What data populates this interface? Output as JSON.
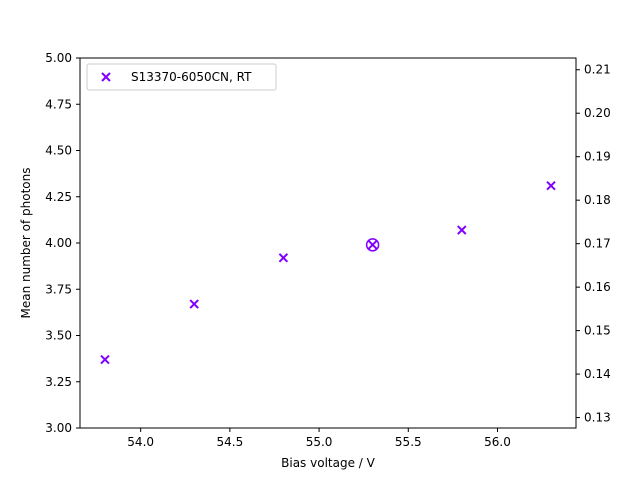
{
  "chart_data": {
    "type": "scatter",
    "xlabel": "Bias voltage / V",
    "ylabel": "Mean number of photons",
    "xlim": [
      53.66,
      56.44
    ],
    "ylim": [
      3.0,
      5.0
    ],
    "y2lim": [
      0.1276,
      0.2127
    ],
    "xticks": [
      "54.0",
      "54.5",
      "55.0",
      "55.5",
      "56.0"
    ],
    "xtick_values": [
      54.0,
      54.5,
      55.0,
      55.5,
      56.0
    ],
    "yticks": [
      "3.00",
      "3.25",
      "3.50",
      "3.75",
      "4.00",
      "4.25",
      "4.50",
      "4.75",
      "5.00"
    ],
    "ytick_values": [
      3.0,
      3.25,
      3.5,
      3.75,
      4.0,
      4.25,
      4.5,
      4.75,
      5.0
    ],
    "y2ticks": [
      "0.13",
      "0.14",
      "0.15",
      "0.16",
      "0.17",
      "0.18",
      "0.19",
      "0.20",
      "0.21"
    ],
    "y2tick_values": [
      0.13,
      0.14,
      0.15,
      0.16,
      0.17,
      0.18,
      0.19,
      0.2,
      0.21
    ],
    "series": [
      {
        "name": "S13370-6050CN, RT",
        "color": "#7f00ff",
        "marker": "x",
        "x": [
          53.8,
          54.3,
          54.8,
          55.3,
          55.8,
          56.3
        ],
        "y": [
          3.37,
          3.67,
          3.92,
          3.99,
          4.07,
          4.31
        ]
      }
    ],
    "highlight": {
      "x": 55.3,
      "y": 3.99,
      "marker": "circle"
    },
    "legend_position": "top-left",
    "grid": false
  }
}
